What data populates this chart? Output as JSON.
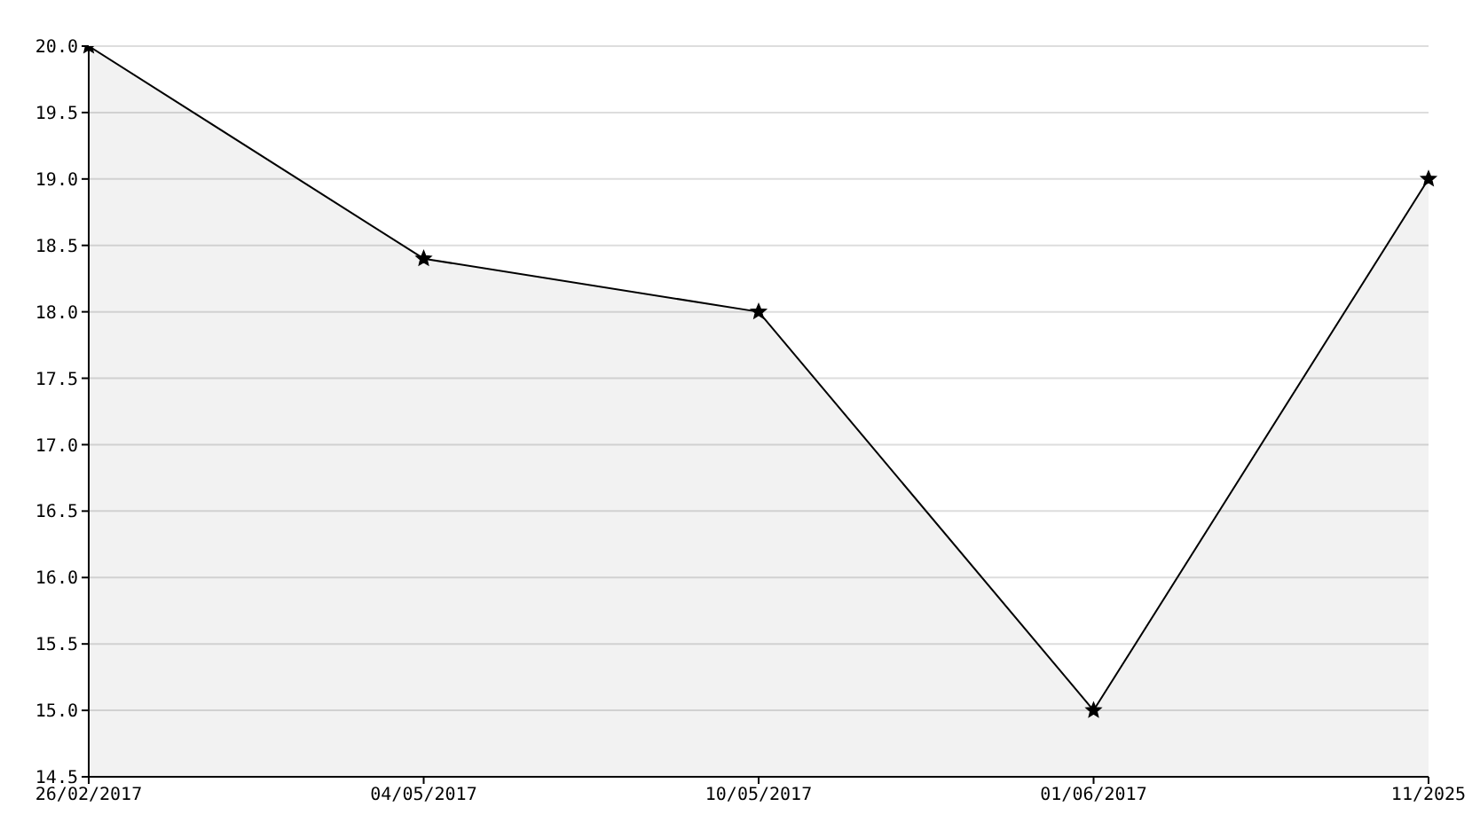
{
  "chart_data": {
    "type": "area",
    "categories": [
      "26/02/2017",
      "04/05/2017",
      "10/05/2017",
      "01/06/2017",
      "11/2025"
    ],
    "series": [
      {
        "color": "#000000",
        "values": [
          20.0,
          18.4,
          18.0,
          15.0,
          19.0
        ]
      }
    ],
    "ylim": [
      14.5,
      20.0
    ],
    "yticks": [
      {
        "value": 14.5,
        "label": "14.5"
      },
      {
        "value": 15,
        "label": "15.0"
      },
      {
        "value": 15.5,
        "label": "15.5"
      },
      {
        "value": 16,
        "label": "16.0"
      },
      {
        "value": 16.5,
        "label": "16.5"
      },
      {
        "value": 17,
        "label": "17.0"
      },
      {
        "value": 17.5,
        "label": "17.5"
      },
      {
        "value": 18,
        "label": "18.0"
      },
      {
        "value": 18.5,
        "label": "18.5"
      },
      {
        "value": 19,
        "label": "19.0"
      },
      {
        "value": 19.5,
        "label": "19.5"
      },
      {
        "value": 20,
        "label": "20.0"
      }
    ],
    "grid": "y",
    "marker": "star",
    "line_style": "solid"
  }
}
